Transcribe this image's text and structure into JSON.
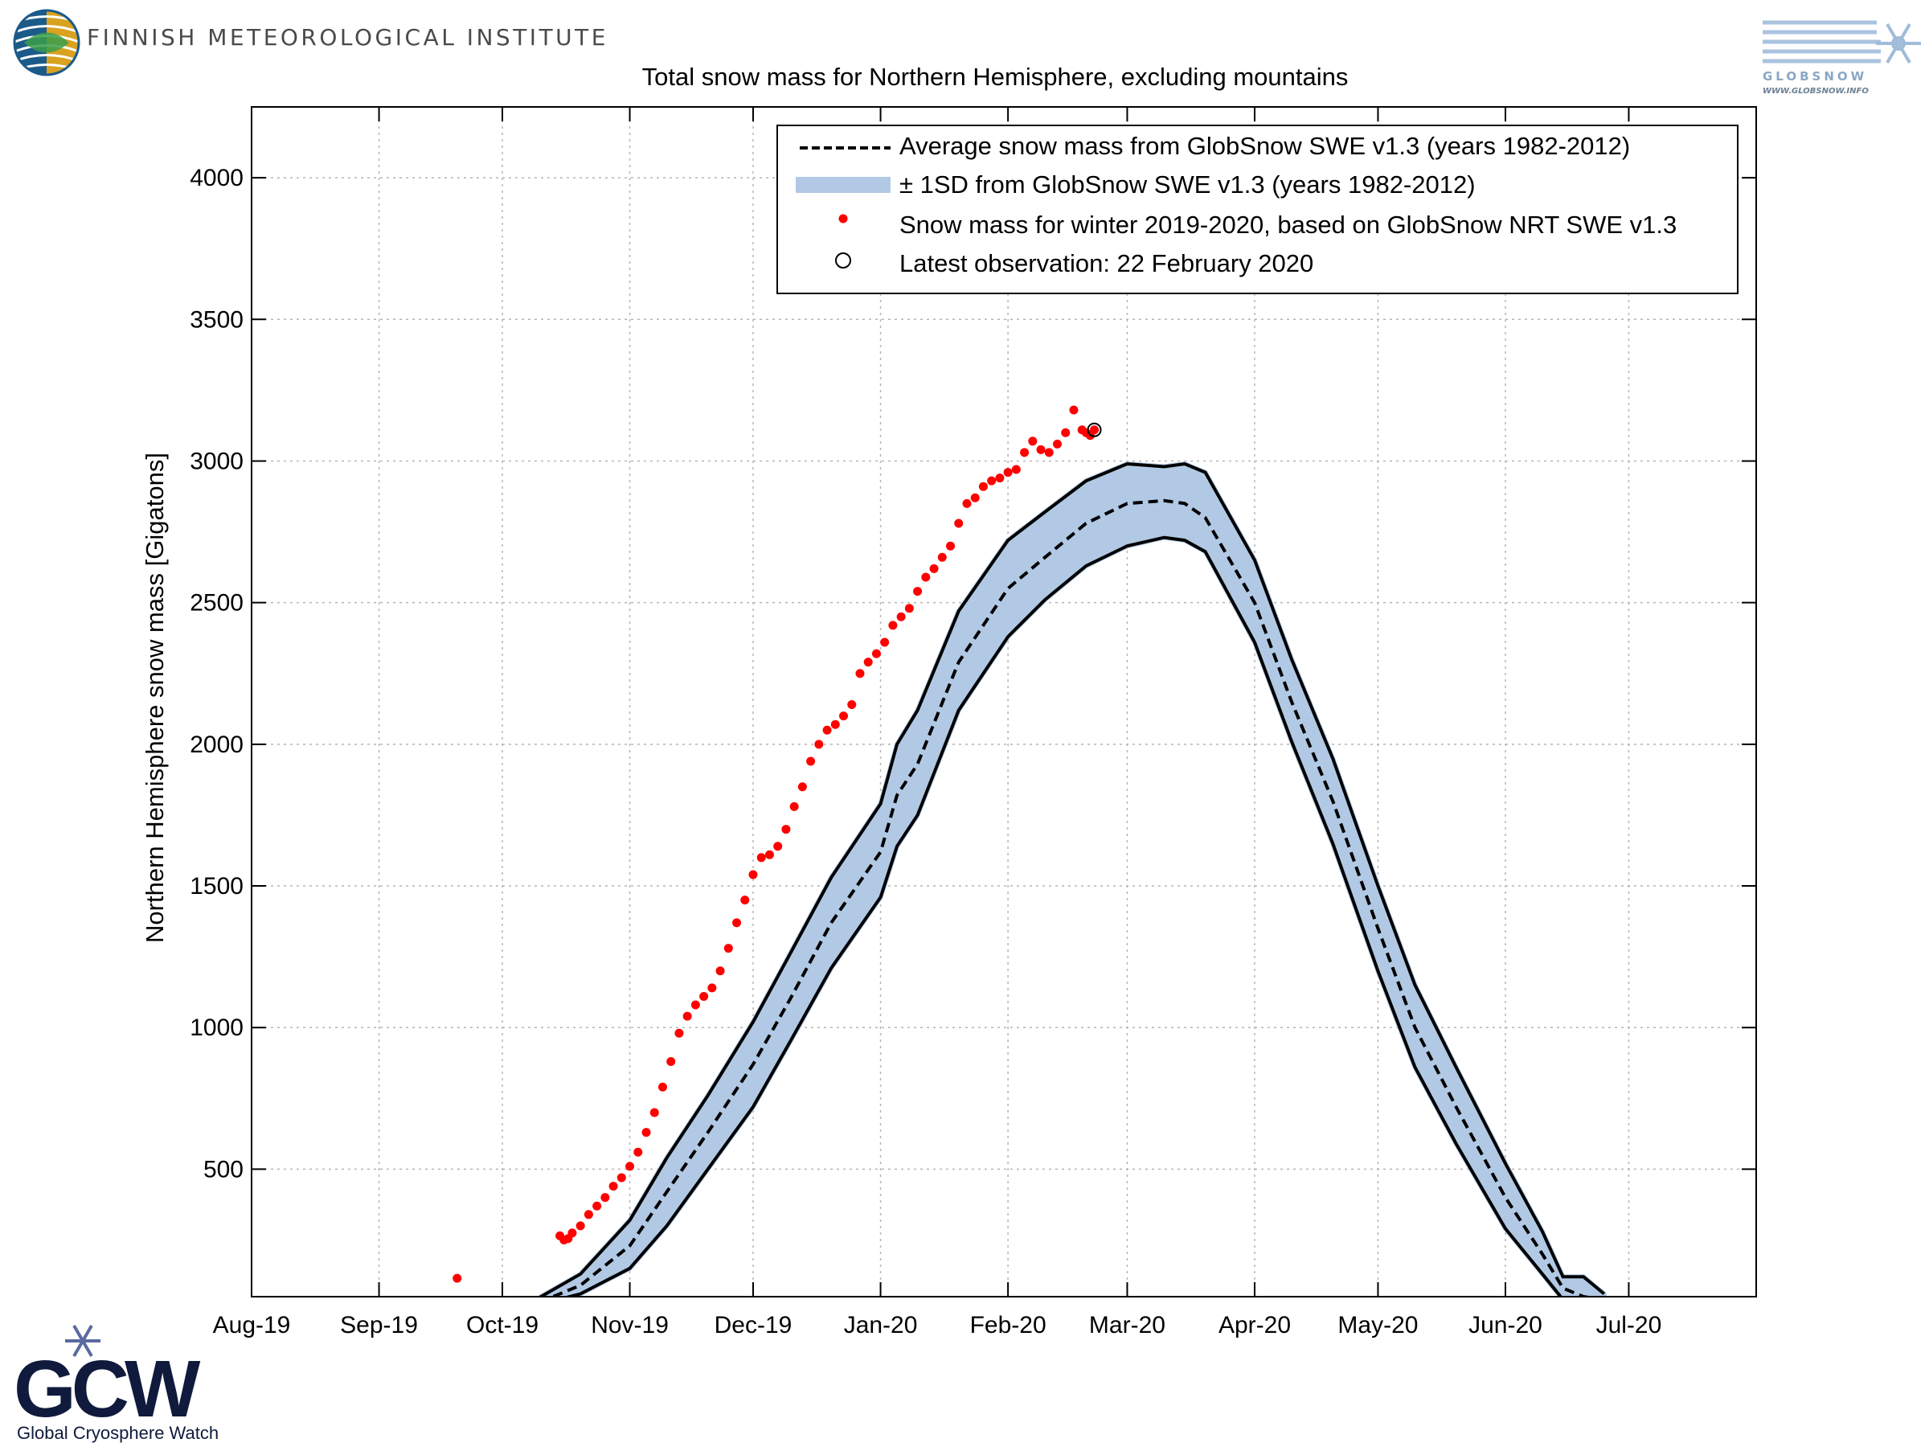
{
  "header": {
    "institute_name": "FINNISH METEOROLOGICAL INSTITUTE",
    "globsnow_logo_text": "GLOBSNOW",
    "globsnow_url": "WWW.GLOBSNOW.INFO",
    "gcw_logo_text": "GCW",
    "gcw_full_name": "Global Cryosphere Watch"
  },
  "colors": {
    "band_fill": "#b1c9e4",
    "current_winter": "#ff0000",
    "average_line": "#000000",
    "sd_line": "#000000"
  },
  "chart_data": {
    "type": "line",
    "title": "Total snow mass for Northern Hemisphere, excluding mountains",
    "xlabel": "",
    "ylabel": "Northern Hemisphere snow mass [Gigatons]",
    "x_unit": "date",
    "xlim": [
      "2019-08-01",
      "2020-08-01"
    ],
    "ylim": [
      50,
      4250
    ],
    "yticks": [
      500,
      1000,
      1500,
      2000,
      2500,
      3000,
      3500,
      4000
    ],
    "xticks": [
      {
        "date": "2019-08-01",
        "label": "Aug-19"
      },
      {
        "date": "2019-09-01",
        "label": "Sep-19"
      },
      {
        "date": "2019-10-01",
        "label": "Oct-19"
      },
      {
        "date": "2019-11-01",
        "label": "Nov-19"
      },
      {
        "date": "2019-12-01",
        "label": "Dec-19"
      },
      {
        "date": "2020-01-01",
        "label": "Jan-20"
      },
      {
        "date": "2020-02-01",
        "label": "Feb-20"
      },
      {
        "date": "2020-03-01",
        "label": "Mar-20"
      },
      {
        "date": "2020-04-01",
        "label": "Apr-20"
      },
      {
        "date": "2020-05-01",
        "label": "May-20"
      },
      {
        "date": "2020-06-01",
        "label": "Jun-20"
      },
      {
        "date": "2020-07-01",
        "label": "Jul-20"
      }
    ],
    "grid": true,
    "legend_position": "top-right",
    "legend": [
      {
        "label": "Average snow mass from GlobSnow SWE v1.3 (years 1982-2012)",
        "style": "dashed-line"
      },
      {
        "label": "± 1SD from GlobSnow SWE v1.3 (years 1982-2012)",
        "style": "band"
      },
      {
        "label": "Snow mass for winter 2019-2020, based on GlobSnow NRT SWE v1.3",
        "style": "red-dot"
      },
      {
        "label": "Latest observation: 22 February 2020",
        "style": "open-circle"
      }
    ],
    "series": [
      {
        "name": "Average snow mass from GlobSnow SWE v1.3 (years 1982-2012)",
        "x": [
          "2019-10-10",
          "2019-10-20",
          "2019-11-01",
          "2019-11-10",
          "2019-11-20",
          "2019-12-01",
          "2019-12-10",
          "2019-12-20",
          "2020-01-01",
          "2020-01-05",
          "2020-01-10",
          "2020-01-20",
          "2020-02-01",
          "2020-02-10",
          "2020-02-20",
          "2020-03-01",
          "2020-03-10",
          "2020-03-15",
          "2020-03-20",
          "2020-04-01",
          "2020-04-10",
          "2020-04-20",
          "2020-05-01",
          "2020-05-10",
          "2020-05-20",
          "2020-06-01",
          "2020-06-10",
          "2020-06-15",
          "2020-06-20",
          "2020-06-25"
        ],
        "y": [
          30,
          90,
          230,
          420,
          630,
          870,
          1100,
          1370,
          1620,
          1820,
          1930,
          2290,
          2550,
          2660,
          2780,
          2850,
          2860,
          2850,
          2800,
          2500,
          2150,
          1800,
          1350,
          1000,
          720,
          400,
          200,
          80,
          50,
          40
        ]
      },
      {
        "name": "+1SD",
        "x": [
          "2019-10-08",
          "2019-10-20",
          "2019-11-01",
          "2019-11-10",
          "2019-11-20",
          "2019-12-01",
          "2019-12-10",
          "2019-12-20",
          "2020-01-01",
          "2020-01-05",
          "2020-01-10",
          "2020-01-20",
          "2020-02-01",
          "2020-02-10",
          "2020-02-20",
          "2020-03-01",
          "2020-03-10",
          "2020-03-15",
          "2020-03-20",
          "2020-04-01",
          "2020-04-10",
          "2020-04-20",
          "2020-05-01",
          "2020-05-10",
          "2020-05-20",
          "2020-06-01",
          "2020-06-10",
          "2020-06-15",
          "2020-06-20",
          "2020-06-25"
        ],
        "y": [
          30,
          130,
          320,
          540,
          760,
          1020,
          1260,
          1530,
          1790,
          2000,
          2120,
          2470,
          2720,
          2820,
          2930,
          2990,
          2980,
          2990,
          2960,
          2650,
          2300,
          1950,
          1500,
          1150,
          860,
          520,
          280,
          120,
          120,
          60
        ]
      },
      {
        "name": "-1SD",
        "x": [
          "2019-10-12",
          "2019-10-20",
          "2019-11-01",
          "2019-11-10",
          "2019-11-20",
          "2019-12-01",
          "2019-12-10",
          "2019-12-20",
          "2020-01-01",
          "2020-01-05",
          "2020-01-10",
          "2020-01-20",
          "2020-02-01",
          "2020-02-10",
          "2020-02-20",
          "2020-03-01",
          "2020-03-10",
          "2020-03-15",
          "2020-03-20",
          "2020-04-01",
          "2020-04-10",
          "2020-04-20",
          "2020-05-01",
          "2020-05-10",
          "2020-05-20",
          "2020-06-01",
          "2020-06-10",
          "2020-06-15",
          "2020-06-20",
          "2020-06-25"
        ],
        "y": [
          30,
          60,
          150,
          300,
          500,
          720,
          950,
          1210,
          1460,
          1640,
          1750,
          2120,
          2380,
          2510,
          2630,
          2700,
          2730,
          2720,
          2680,
          2360,
          2010,
          1650,
          1200,
          860,
          590,
          290,
          130,
          40,
          30,
          30
        ]
      },
      {
        "name": "Snow mass for winter 2019-2020, based on GlobSnow NRT SWE v1.3",
        "x": [
          "2019-09-20",
          "2019-10-15",
          "2019-10-16",
          "2019-10-17",
          "2019-10-18",
          "2019-10-20",
          "2019-10-22",
          "2019-10-24",
          "2019-10-26",
          "2019-10-28",
          "2019-10-30",
          "2019-11-01",
          "2019-11-03",
          "2019-11-05",
          "2019-11-07",
          "2019-11-09",
          "2019-11-11",
          "2019-11-13",
          "2019-11-15",
          "2019-11-17",
          "2019-11-19",
          "2019-11-21",
          "2019-11-23",
          "2019-11-25",
          "2019-11-27",
          "2019-11-29",
          "2019-12-01",
          "2019-12-03",
          "2019-12-05",
          "2019-12-07",
          "2019-12-09",
          "2019-12-11",
          "2019-12-13",
          "2019-12-15",
          "2019-12-17",
          "2019-12-19",
          "2019-12-21",
          "2019-12-23",
          "2019-12-25",
          "2019-12-27",
          "2019-12-29",
          "2019-12-31",
          "2020-01-02",
          "2020-01-04",
          "2020-01-06",
          "2020-01-08",
          "2020-01-10",
          "2020-01-12",
          "2020-01-14",
          "2020-01-16",
          "2020-01-18",
          "2020-01-20",
          "2020-01-22",
          "2020-01-24",
          "2020-01-26",
          "2020-01-28",
          "2020-01-30",
          "2020-02-01",
          "2020-02-03",
          "2020-02-05",
          "2020-02-07",
          "2020-02-09",
          "2020-02-11",
          "2020-02-13",
          "2020-02-15",
          "2020-02-17",
          "2020-02-19",
          "2020-02-20",
          "2020-02-21",
          "2020-02-22"
        ],
        "y": [
          115,
          265,
          250,
          255,
          275,
          300,
          340,
          370,
          400,
          440,
          470,
          510,
          560,
          630,
          700,
          790,
          880,
          980,
          1040,
          1080,
          1110,
          1140,
          1200,
          1280,
          1370,
          1450,
          1540,
          1600,
          1610,
          1640,
          1700,
          1780,
          1850,
          1940,
          2000,
          2050,
          2070,
          2100,
          2140,
          2250,
          2290,
          2320,
          2360,
          2420,
          2450,
          2480,
          2540,
          2590,
          2620,
          2660,
          2700,
          2780,
          2850,
          2870,
          2910,
          2930,
          2940,
          2960,
          2970,
          3030,
          3070,
          3040,
          3030,
          3060,
          3100,
          3180,
          3110,
          3100,
          3090,
          3110
        ]
      }
    ],
    "latest_observation": {
      "x": "2020-02-22",
      "y": 3110
    }
  }
}
